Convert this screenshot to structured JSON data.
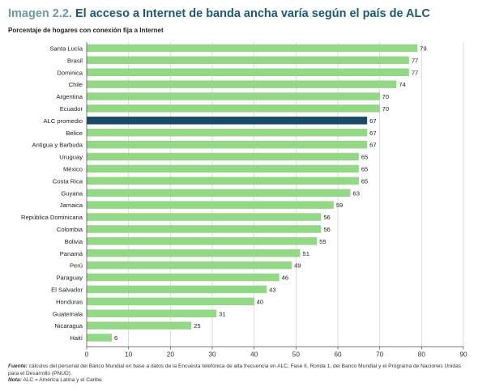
{
  "header": {
    "title_prefix": "Imagen 2.2.",
    "title_main": "El acceso a Internet de banda ancha varía según el país de ALC",
    "subtitle": "Porcentaje de hogares con conexión fija a Internet"
  },
  "footer": {
    "source_label": "Fuente:",
    "source_text": "cálculos del personal del Banco Mundial en base a datos de la Encuesta telefónica de alta frecuencia en ALC, Fase II, Ronda 1, del Banco Mundial y el Programa de Naciones Unidas para el Desarrollo (PNUD).",
    "note_label": "Nota:",
    "note_text": "ALC = América Latina y el Caribe"
  },
  "colors": {
    "bar": "#93d886",
    "highlight": "#1a4b66",
    "grid": "#c8c8c8",
    "axis": "#555555"
  },
  "chart_data": {
    "type": "bar",
    "orientation": "horizontal",
    "categories": [
      "Santa Lucía",
      "Brasil",
      "Dominica",
      "Chile",
      "Argentina",
      "Ecuador",
      "ALC promedio",
      "Belice",
      "Antigua y Barbuda",
      "Uruguay",
      "México",
      "Costa Rica",
      "Guyana",
      "Jamaica",
      "República Dominicana",
      "Colombia",
      "Bolivia",
      "Panamá",
      "Perú",
      "Paraguay",
      "El Salvador",
      "Honduras",
      "Guatemala",
      "Nicaragua",
      "Haití"
    ],
    "values": [
      79,
      77,
      77,
      74,
      70,
      70,
      67,
      67,
      67,
      65,
      65,
      65,
      63,
      59,
      56,
      56,
      55,
      51,
      49,
      46,
      43,
      40,
      31,
      25,
      6
    ],
    "highlight": "ALC promedio",
    "xlim": [
      0,
      90
    ],
    "xticks": [
      0,
      10,
      20,
      30,
      40,
      50,
      60,
      70,
      80,
      90
    ],
    "grid": true
  }
}
